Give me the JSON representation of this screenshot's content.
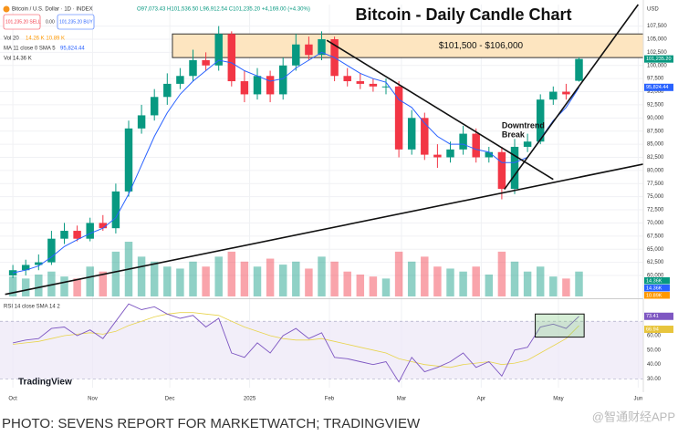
{
  "chart_data": {
    "type": "candlestick",
    "title": "Bitcoin - Daily Candle Chart",
    "symbol_legend": "Bitcoin / U.S. Dollar · 1D · INDEX",
    "ohlc_legend": "O97,073.43 H101,536.50 L96,912.54 C101,235.20 +4,169.00 (+4.30%)",
    "sell_button": "101,235.20 SELL",
    "spread": "0.00",
    "buy_button": "101,235.20 BUY",
    "color_up": "#089981",
    "color_down": "#f23645",
    "x": [
      0,
      5,
      10,
      15,
      20,
      25,
      30,
      35,
      40,
      45,
      50,
      55,
      60,
      65,
      70,
      75,
      80,
      85,
      90,
      95,
      100,
      105,
      110,
      115,
      120,
      125,
      130,
      135,
      140,
      145,
      150,
      155,
      160,
      165,
      170,
      175,
      180,
      185,
      190,
      195,
      200,
      205,
      210,
      215,
      220
    ],
    "open": [
      60000,
      61000,
      62000,
      62500,
      67000,
      68500,
      67000,
      70000,
      69000,
      76000,
      88000,
      90500,
      94000,
      96500,
      98000,
      101000,
      100000,
      106000,
      97000,
      94500,
      98000,
      94500,
      100000,
      104000,
      102000,
      105000,
      98000,
      97000,
      96500,
      96000,
      96000,
      84000,
      90000,
      83000,
      82500,
      84000,
      87000,
      82500,
      83500,
      76500,
      84500,
      85500,
      93500,
      95000,
      97073.43
    ],
    "high": [
      62000,
      63000,
      64000,
      68500,
      70000,
      69500,
      71000,
      71500,
      77500,
      89500,
      92500,
      95500,
      98500,
      99500,
      103000,
      102500,
      107500,
      106500,
      99000,
      99500,
      99000,
      101500,
      106000,
      105500,
      106500,
      105500,
      99500,
      98500,
      97500,
      97500,
      97000,
      91500,
      91000,
      85000,
      85500,
      88500,
      88000,
      84500,
      84500,
      86000,
      87000,
      94500,
      96000,
      96500,
      101536.5
    ],
    "low": [
      59500,
      60000,
      61000,
      62000,
      66000,
      66500,
      66500,
      68500,
      68000,
      75000,
      87000,
      89500,
      92500,
      95500,
      97000,
      99000,
      99000,
      96000,
      93000,
      93500,
      93000,
      93500,
      99000,
      101000,
      101000,
      97000,
      96000,
      95500,
      95000,
      94500,
      82500,
      83000,
      82000,
      80500,
      81500,
      83000,
      81500,
      81500,
      74500,
      75500,
      83500,
      85000,
      92500,
      93500,
      96912.54
    ],
    "close": [
      61000,
      62000,
      62500,
      67000,
      68500,
      67000,
      70000,
      69000,
      76000,
      88000,
      90500,
      94000,
      96500,
      98000,
      101000,
      100000,
      106000,
      97000,
      94500,
      98000,
      94500,
      100000,
      104000,
      102000,
      105000,
      98000,
      97000,
      96500,
      96000,
      96000,
      84000,
      90000,
      83000,
      82500,
      84000,
      87000,
      82500,
      83500,
      76500,
      84500,
      85500,
      93500,
      95000,
      94500,
      101235.2
    ],
    "price_tag": "101,235.20",
    "xlim": [
      -5,
      245
    ],
    "xticks": [
      {
        "value": 0,
        "label": "Oct"
      },
      {
        "value": 31,
        "label": "Nov"
      },
      {
        "value": 61,
        "label": "Dec"
      },
      {
        "value": 92,
        "label": "2025"
      },
      {
        "value": 123,
        "label": "Feb"
      },
      {
        "value": 151,
        "label": "Mar"
      },
      {
        "value": 182,
        "label": "Apr"
      },
      {
        "value": 212,
        "label": "May"
      },
      {
        "value": 243,
        "label": "Jun"
      }
    ],
    "y_unit": "USD",
    "ylim": [
      56000,
      111600
    ],
    "yticks": [
      {
        "value": 60000,
        "label": "60,000"
      },
      {
        "value": 62500,
        "label": "62,500"
      },
      {
        "value": 65000,
        "label": "65,000"
      },
      {
        "value": 67500,
        "label": "67,500"
      },
      {
        "value": 70000,
        "label": "70,000"
      },
      {
        "value": 72500,
        "label": "72,500"
      },
      {
        "value": 75000,
        "label": "75,000"
      },
      {
        "value": 77500,
        "label": "77,500"
      },
      {
        "value": 80000,
        "label": "80,000"
      },
      {
        "value": 82500,
        "label": "82,500"
      },
      {
        "value": 85000,
        "label": "85,000"
      },
      {
        "value": 87500,
        "label": "87,500"
      },
      {
        "value": 90000,
        "label": "90,000"
      },
      {
        "value": 92500,
        "label": "92,500"
      },
      {
        "value": 95000,
        "label": "95,000"
      },
      {
        "value": 97500,
        "label": "97,500"
      },
      {
        "value": 100000,
        "label": "100,000"
      },
      {
        "value": 102500,
        "label": "102,500"
      },
      {
        "value": 105000,
        "label": "105,000"
      },
      {
        "value": 107500,
        "label": "107,500"
      }
    ],
    "ma": {
      "legend": "MA 11 close 0 SMA 5",
      "legend_value": "95,824.44",
      "tag": "95,824.44",
      "color": "#2962ff",
      "values": [
        60500,
        61000,
        61800,
        63500,
        65500,
        66800,
        68000,
        69000,
        71000,
        75500,
        81000,
        86500,
        91000,
        94500,
        97000,
        99000,
        101000,
        100500,
        99000,
        98000,
        97000,
        97500,
        99500,
        101000,
        102500,
        101500,
        100000,
        98500,
        97500,
        96800,
        93500,
        92000,
        89000,
        86500,
        85000,
        85000,
        84000,
        83500,
        81500,
        81500,
        82500,
        86000,
        89500,
        92000,
        95824.44
      ]
    },
    "volume": {
      "legend": "Vol 20",
      "legend_values": "14.26 K  10.89 K",
      "legend2": "Vol 14.36 K",
      "ylim": [
        0,
        110
      ],
      "values": [
        20,
        18,
        22,
        25,
        20,
        18,
        30,
        25,
        45,
        55,
        40,
        35,
        30,
        28,
        35,
        30,
        40,
        45,
        35,
        30,
        38,
        32,
        35,
        28,
        40,
        35,
        25,
        22,
        20,
        18,
        45,
        35,
        40,
        30,
        28,
        25,
        30,
        22,
        45,
        35,
        25,
        30,
        20,
        18,
        25
      ],
      "tags": [
        {
          "label": "14.36K",
          "color": "#089981"
        },
        {
          "label": "14.36K",
          "color": "#2962ff"
        },
        {
          "label": "10.89K",
          "color": "#ff9800"
        }
      ]
    },
    "rsi": {
      "legend": "RSI 14 close SMA 14 2",
      "color": "#7e57c2",
      "sma_color": "#e8d44d",
      "values": [
        55,
        57,
        58,
        65,
        66,
        60,
        64,
        58,
        70,
        82,
        78,
        80,
        75,
        72,
        74,
        66,
        72,
        48,
        45,
        55,
        48,
        60,
        65,
        58,
        62,
        45,
        44,
        42,
        40,
        42,
        28,
        45,
        35,
        38,
        42,
        48,
        38,
        42,
        32,
        50,
        52,
        66,
        68,
        65,
        73.41
      ],
      "sma": [
        54,
        55,
        56,
        58,
        60,
        61,
        62,
        61,
        63,
        67,
        70,
        73,
        75,
        76,
        76,
        75,
        74,
        70,
        66,
        63,
        60,
        58,
        57,
        57,
        58,
        56,
        54,
        52,
        50,
        48,
        44,
        42,
        40,
        39,
        38,
        40,
        41,
        42,
        40,
        41,
        43,
        48,
        53,
        58,
        66.94
      ],
      "ylim": [
        24,
        84
      ],
      "yticks": [
        {
          "value": 30,
          "label": "30.00"
        },
        {
          "value": 40,
          "label": "40.00"
        },
        {
          "value": 50,
          "label": "50.00"
        },
        {
          "value": 60,
          "label": "60.00"
        }
      ],
      "band": [
        30,
        70
      ],
      "highlight": {
        "x": [
          203,
          222
        ],
        "y": [
          59,
          75
        ]
      }
    },
    "zone": {
      "label": "$101,500 - $106,000",
      "x_start": 62,
      "y": [
        101500,
        106000
      ]
    },
    "trendlines": [
      {
        "x": [
          -3,
          245
        ],
        "y": [
          56400,
          81200
        ]
      },
      {
        "x": [
          122,
          210
        ],
        "y": [
          104800,
          78300
        ]
      },
      {
        "x": [
          191,
          243
        ],
        "y": [
          76400,
          111600
        ]
      }
    ],
    "annotation": {
      "lines": [
        "Downtrend",
        "Break"
      ],
      "x": 190,
      "y": 88500
    },
    "logo": "TradingView",
    "source": "PHOTO: SEVENS REPORT FOR MARKETWATCH; TRADINGVIEW",
    "watermark": "@智通财经APP"
  }
}
